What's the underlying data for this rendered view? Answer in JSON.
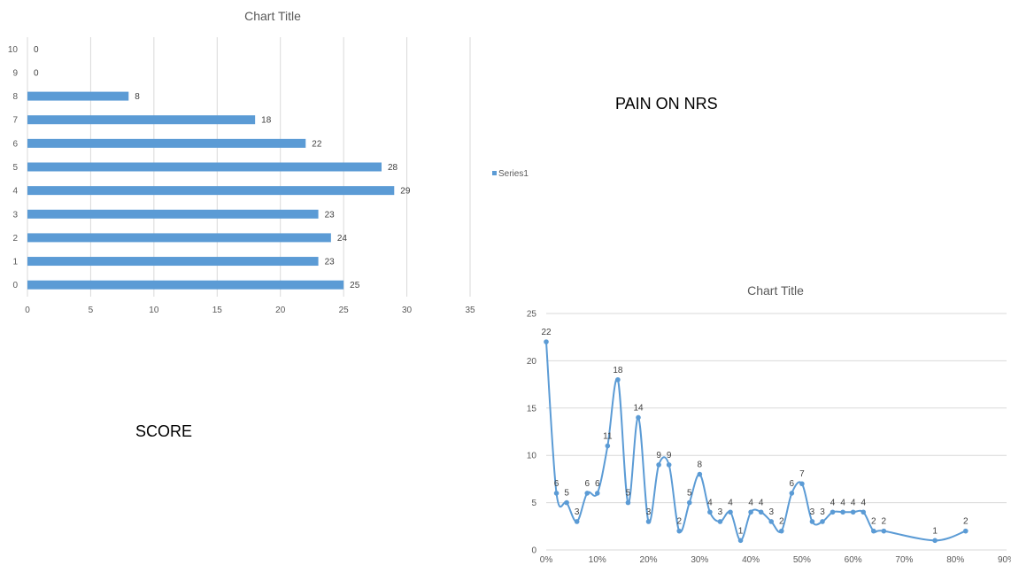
{
  "chart_data": [
    {
      "type": "bar",
      "orientation": "horizontal",
      "title": "Chart Title",
      "categories": [
        "0",
        "1",
        "2",
        "3",
        "4",
        "5",
        "6",
        "7",
        "8",
        "9",
        "10"
      ],
      "series": [
        {
          "name": "Series1",
          "values": [
            25,
            23,
            24,
            23,
            29,
            28,
            22,
            18,
            8,
            0,
            0
          ]
        }
      ],
      "xlim": [
        0,
        35
      ],
      "x_ticks": [
        "0",
        "5",
        "10",
        "15",
        "20",
        "25",
        "30",
        "35"
      ],
      "grid": true,
      "legend_position": "right",
      "color": "#5b9bd5"
    },
    {
      "type": "line",
      "smooth": true,
      "markers": true,
      "title": "Chart Title",
      "x": [
        0,
        2,
        4,
        6,
        8,
        10,
        12,
        14,
        16,
        18,
        20,
        22,
        24,
        26,
        28,
        30,
        32,
        34,
        36,
        38,
        40,
        42,
        44,
        46,
        48,
        50,
        52,
        54,
        56,
        58,
        60,
        62,
        64,
        66,
        76,
        82
      ],
      "series": [
        {
          "values": [
            22,
            6,
            5,
            3,
            6,
            6,
            11,
            18,
            5,
            14,
            3,
            9,
            9,
            2,
            5,
            8,
            4,
            3,
            4,
            1,
            4,
            4,
            3,
            2,
            6,
            7,
            3,
            3,
            4,
            4,
            4,
            4,
            2,
            2,
            1,
            2
          ]
        }
      ],
      "ylim": [
        0,
        25
      ],
      "xlim": [
        0,
        90
      ],
      "y_ticks": [
        "0",
        "5",
        "10",
        "15",
        "20",
        "25"
      ],
      "x_ticks": [
        "0%",
        "10%",
        "20%",
        "30%",
        "40%",
        "50%",
        "60%",
        "70%",
        "80%",
        "90%"
      ],
      "grid": true,
      "color": "#5b9bd5"
    }
  ],
  "annotations": {
    "pain_label": "PAIN ON NRS",
    "score_label": "SCORE"
  }
}
